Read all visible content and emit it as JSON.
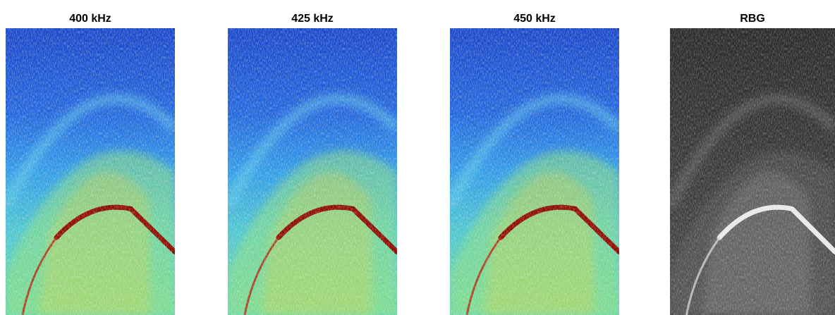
{
  "panels": [
    {
      "title": "400 kHz"
    },
    {
      "title": "425 kHz"
    },
    {
      "title": "450 kHz"
    },
    {
      "title": "RBG"
    }
  ]
}
